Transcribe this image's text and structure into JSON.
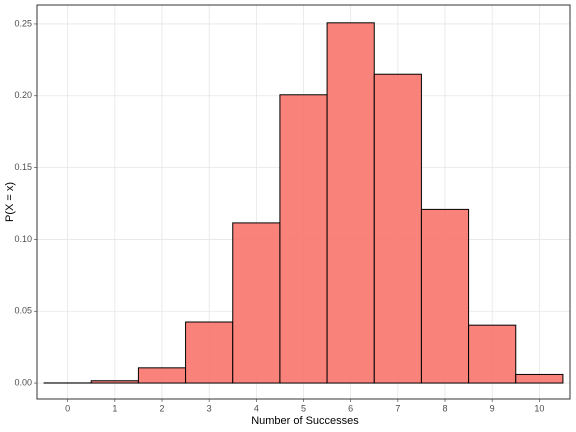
{
  "chart_data": {
    "type": "bar",
    "x_label": "Number of Successes",
    "y_label": "P(X = x)",
    "x": [
      0,
      1,
      2,
      3,
      4,
      5,
      6,
      7,
      8,
      9,
      10
    ],
    "values": [
      0.0001,
      0.0016,
      0.0106,
      0.0425,
      0.1115,
      0.2007,
      0.2508,
      0.215,
      0.1209,
      0.0403,
      0.006
    ],
    "color": "#f8766d",
    "xlim": [
      -0.65,
      10.65
    ],
    "xticks": [
      0,
      1,
      2,
      3,
      4,
      5,
      6,
      7,
      8,
      9,
      10
    ],
    "ylim": [
      -0.0111,
      0.2632
    ],
    "yticks": [
      {
        "value": 0,
        "label": "0.00"
      },
      {
        "value": 0.05,
        "label": "0.05"
      },
      {
        "value": 0.1,
        "label": "0.10"
      },
      {
        "value": 0.15,
        "label": "0.15"
      },
      {
        "value": 0.2,
        "label": "0.20"
      },
      {
        "value": 0.25,
        "label": "0.25"
      }
    ],
    "grid": true
  }
}
